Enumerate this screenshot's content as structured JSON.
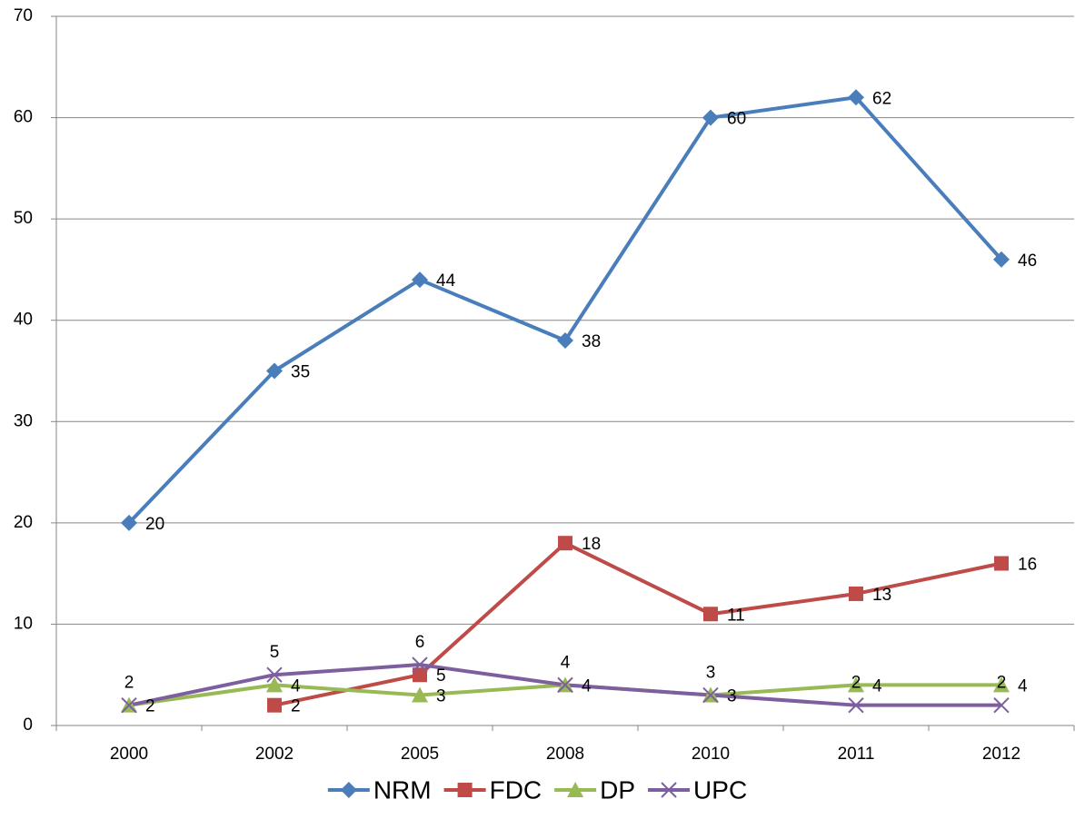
{
  "chart_data": {
    "type": "line",
    "categories": [
      "2000",
      "2002",
      "2005",
      "2008",
      "2010",
      "2011",
      "2012"
    ],
    "series": [
      {
        "name": "NRM",
        "color": "#4a7ebb",
        "marker": "diamond",
        "values": [
          20,
          35,
          44,
          38,
          60,
          62,
          46
        ]
      },
      {
        "name": "FDC",
        "color": "#be4b48",
        "marker": "square",
        "values": [
          null,
          2,
          5,
          18,
          11,
          13,
          16
        ]
      },
      {
        "name": "DP",
        "color": "#98b954",
        "marker": "triangle",
        "values": [
          2,
          4,
          3,
          4,
          3,
          4,
          4
        ]
      },
      {
        "name": "UPC",
        "color": "#7d5fa0",
        "marker": "x",
        "values": [
          2,
          5,
          6,
          4,
          3,
          2,
          2
        ]
      }
    ],
    "ylim": [
      0,
      70
    ],
    "yticks": [
      0,
      10,
      20,
      30,
      40,
      50,
      60,
      70
    ],
    "grid": true,
    "legend": "bottom"
  }
}
